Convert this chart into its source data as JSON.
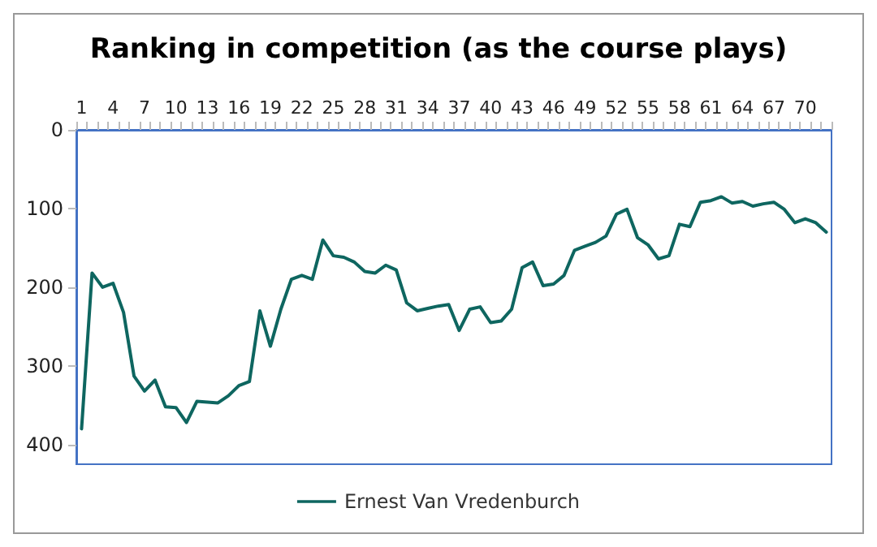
{
  "chart_data": {
    "type": "line",
    "title": "Ranking in competition (as the course plays)",
    "categories": [
      "1",
      null,
      null,
      "4",
      null,
      null,
      "7",
      null,
      null,
      "10",
      null,
      null,
      "13",
      null,
      null,
      "16",
      null,
      null,
      "19",
      null,
      null,
      "22",
      null,
      null,
      "25",
      null,
      null,
      "28",
      null,
      null,
      "31",
      null,
      null,
      "34",
      null,
      null,
      "37",
      null,
      null,
      "40",
      null,
      null,
      "43",
      null,
      null,
      "46",
      null,
      null,
      "49",
      null,
      null,
      "52",
      null,
      null,
      "55",
      null,
      null,
      "58",
      null,
      null,
      "61",
      null,
      null,
      "64",
      null,
      null,
      "67",
      null,
      null,
      "70",
      null,
      null
    ],
    "series": [
      {
        "name": "Ernest Van Vredenburch",
        "color": "#0e6660",
        "values": [
          380,
          182,
          200,
          195,
          232,
          313,
          332,
          318,
          352,
          353,
          372,
          345,
          346,
          347,
          338,
          325,
          320,
          230,
          275,
          228,
          190,
          185,
          190,
          140,
          160,
          162,
          168,
          180,
          182,
          172,
          178,
          220,
          230,
          227,
          224,
          222,
          255,
          228,
          225,
          245,
          243,
          228,
          175,
          168,
          198,
          196,
          185,
          153,
          148,
          143,
          135,
          107,
          101,
          137,
          146,
          164,
          160,
          120,
          123,
          92,
          90,
          85,
          93,
          91,
          97,
          94,
          92,
          101,
          118,
          113,
          118,
          130
        ]
      }
    ],
    "ylim": [
      425,
      0
    ],
    "yticks": [
      0,
      100,
      200,
      300,
      400
    ],
    "grid": false,
    "legend": "bottom",
    "marker": "none",
    "line_style": "solid"
  }
}
